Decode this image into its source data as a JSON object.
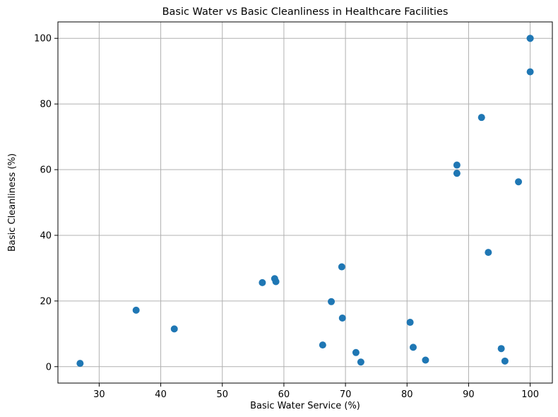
{
  "chart_data": {
    "type": "scatter",
    "title": "Basic Water vs Basic Cleanliness in Healthcare Facilities",
    "xlabel": "Basic Water Service (%)",
    "ylabel": "Basic Cleanliness (%)",
    "xlim": [
      23.3,
      103.6
    ],
    "ylim": [
      -5,
      105
    ],
    "xticks": [
      30,
      40,
      50,
      60,
      70,
      80,
      90,
      100
    ],
    "yticks": [
      0,
      20,
      40,
      60,
      80,
      100
    ],
    "grid": true,
    "marker_color": "#1f77b4",
    "points": [
      {
        "x": 26.9,
        "y": 1.0
      },
      {
        "x": 36.0,
        "y": 17.2
      },
      {
        "x": 42.2,
        "y": 11.5
      },
      {
        "x": 56.5,
        "y": 25.6
      },
      {
        "x": 58.5,
        "y": 26.8
      },
      {
        "x": 58.7,
        "y": 25.9
      },
      {
        "x": 66.3,
        "y": 6.6
      },
      {
        "x": 67.7,
        "y": 19.8
      },
      {
        "x": 69.4,
        "y": 30.4
      },
      {
        "x": 69.5,
        "y": 14.8
      },
      {
        "x": 71.7,
        "y": 4.3
      },
      {
        "x": 72.5,
        "y": 1.4
      },
      {
        "x": 80.5,
        "y": 13.5
      },
      {
        "x": 81.0,
        "y": 5.9
      },
      {
        "x": 83.0,
        "y": 2.0
      },
      {
        "x": 88.1,
        "y": 61.4
      },
      {
        "x": 88.1,
        "y": 58.9
      },
      {
        "x": 92.1,
        "y": 75.9
      },
      {
        "x": 93.2,
        "y": 34.8
      },
      {
        "x": 95.3,
        "y": 5.5
      },
      {
        "x": 95.9,
        "y": 1.7
      },
      {
        "x": 98.1,
        "y": 56.3
      },
      {
        "x": 100.0,
        "y": 100.0
      },
      {
        "x": 100.0,
        "y": 100.0
      },
      {
        "x": 100.0,
        "y": 89.8
      }
    ]
  }
}
